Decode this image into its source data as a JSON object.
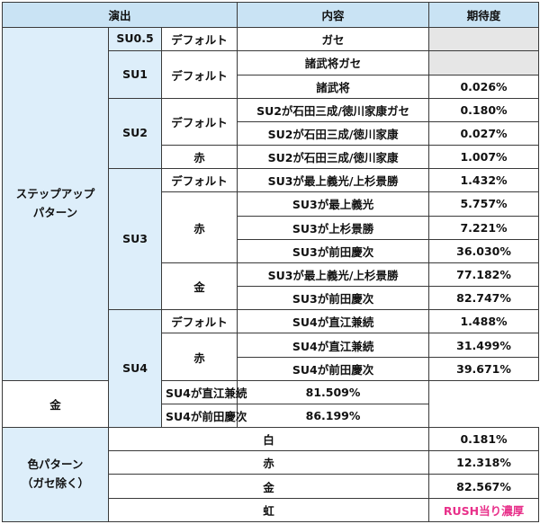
{
  "header": {
    "col_enshutsu": "演出",
    "col_naiyou": "内容",
    "col_kitaido": "期待度"
  },
  "stepup": {
    "label_line1": "ステップアップ",
    "label_line2": "パターン",
    "su05": {
      "name": "SU0.5",
      "variant": "デフォルト",
      "content": "ガセ",
      "value": ""
    },
    "su1": {
      "name": "SU1",
      "variant": "デフォルト",
      "rows": [
        {
          "content": "諸武将ガセ",
          "value": ""
        },
        {
          "content": "諸武将",
          "value": "0.026%"
        }
      ]
    },
    "su2": {
      "name": "SU2",
      "default_variant": "デフォルト",
      "red_variant": "赤",
      "rows": [
        {
          "content": "SU2が石田三成/徳川家康ガセ",
          "value": "0.180%"
        },
        {
          "content": "SU2が石田三成/徳川家康",
          "value": "0.027%"
        },
        {
          "content": "SU2が石田三成/徳川家康",
          "value": "1.007%"
        }
      ]
    },
    "su3": {
      "name": "SU3",
      "default_variant": "デフォルト",
      "red_variant": "赤",
      "gold_variant": "金",
      "rows": [
        {
          "content": "SU3が最上義光/上杉景勝",
          "value": "1.432%"
        },
        {
          "content": "SU3が最上義光",
          "value": "5.757%"
        },
        {
          "content": "SU3が上杉景勝",
          "value": "7.221%"
        },
        {
          "content": "SU3が前田慶次",
          "value": "36.030%"
        },
        {
          "content": "SU3が最上義光/上杉景勝",
          "value": "77.182%"
        },
        {
          "content": "SU3が前田慶次",
          "value": "82.747%"
        }
      ]
    },
    "su4": {
      "name": "SU4",
      "default_variant": "デフォルト",
      "red_variant": "赤",
      "gold_variant": "金",
      "rows": [
        {
          "content": "SU4が直江兼続",
          "value": "1.488%"
        },
        {
          "content": "SU4が直江兼続",
          "value": "31.499%"
        },
        {
          "content": "SU4が前田慶次",
          "value": "39.671%"
        },
        {
          "content": "SU4が直江兼続",
          "value": "81.509%"
        },
        {
          "content": "SU4が前田慶次",
          "value": "86.199%"
        }
      ]
    }
  },
  "color_pattern": {
    "label_line1": "色パターン",
    "label_line2": "（ガセ除く）",
    "rows": [
      {
        "content": "白",
        "value": "0.181%"
      },
      {
        "content": "赤",
        "value": "12.318%"
      },
      {
        "content": "金",
        "value": "82.567%"
      },
      {
        "content": "虹",
        "value": "RUSH当り濃厚"
      }
    ]
  },
  "colors": {
    "header_bg": "#c9e3f4",
    "category_bg": "#ddeefa",
    "empty_cell_bg": "#e6e6e6",
    "rush_text": "#e8308a",
    "border": "#3a3a3a"
  }
}
